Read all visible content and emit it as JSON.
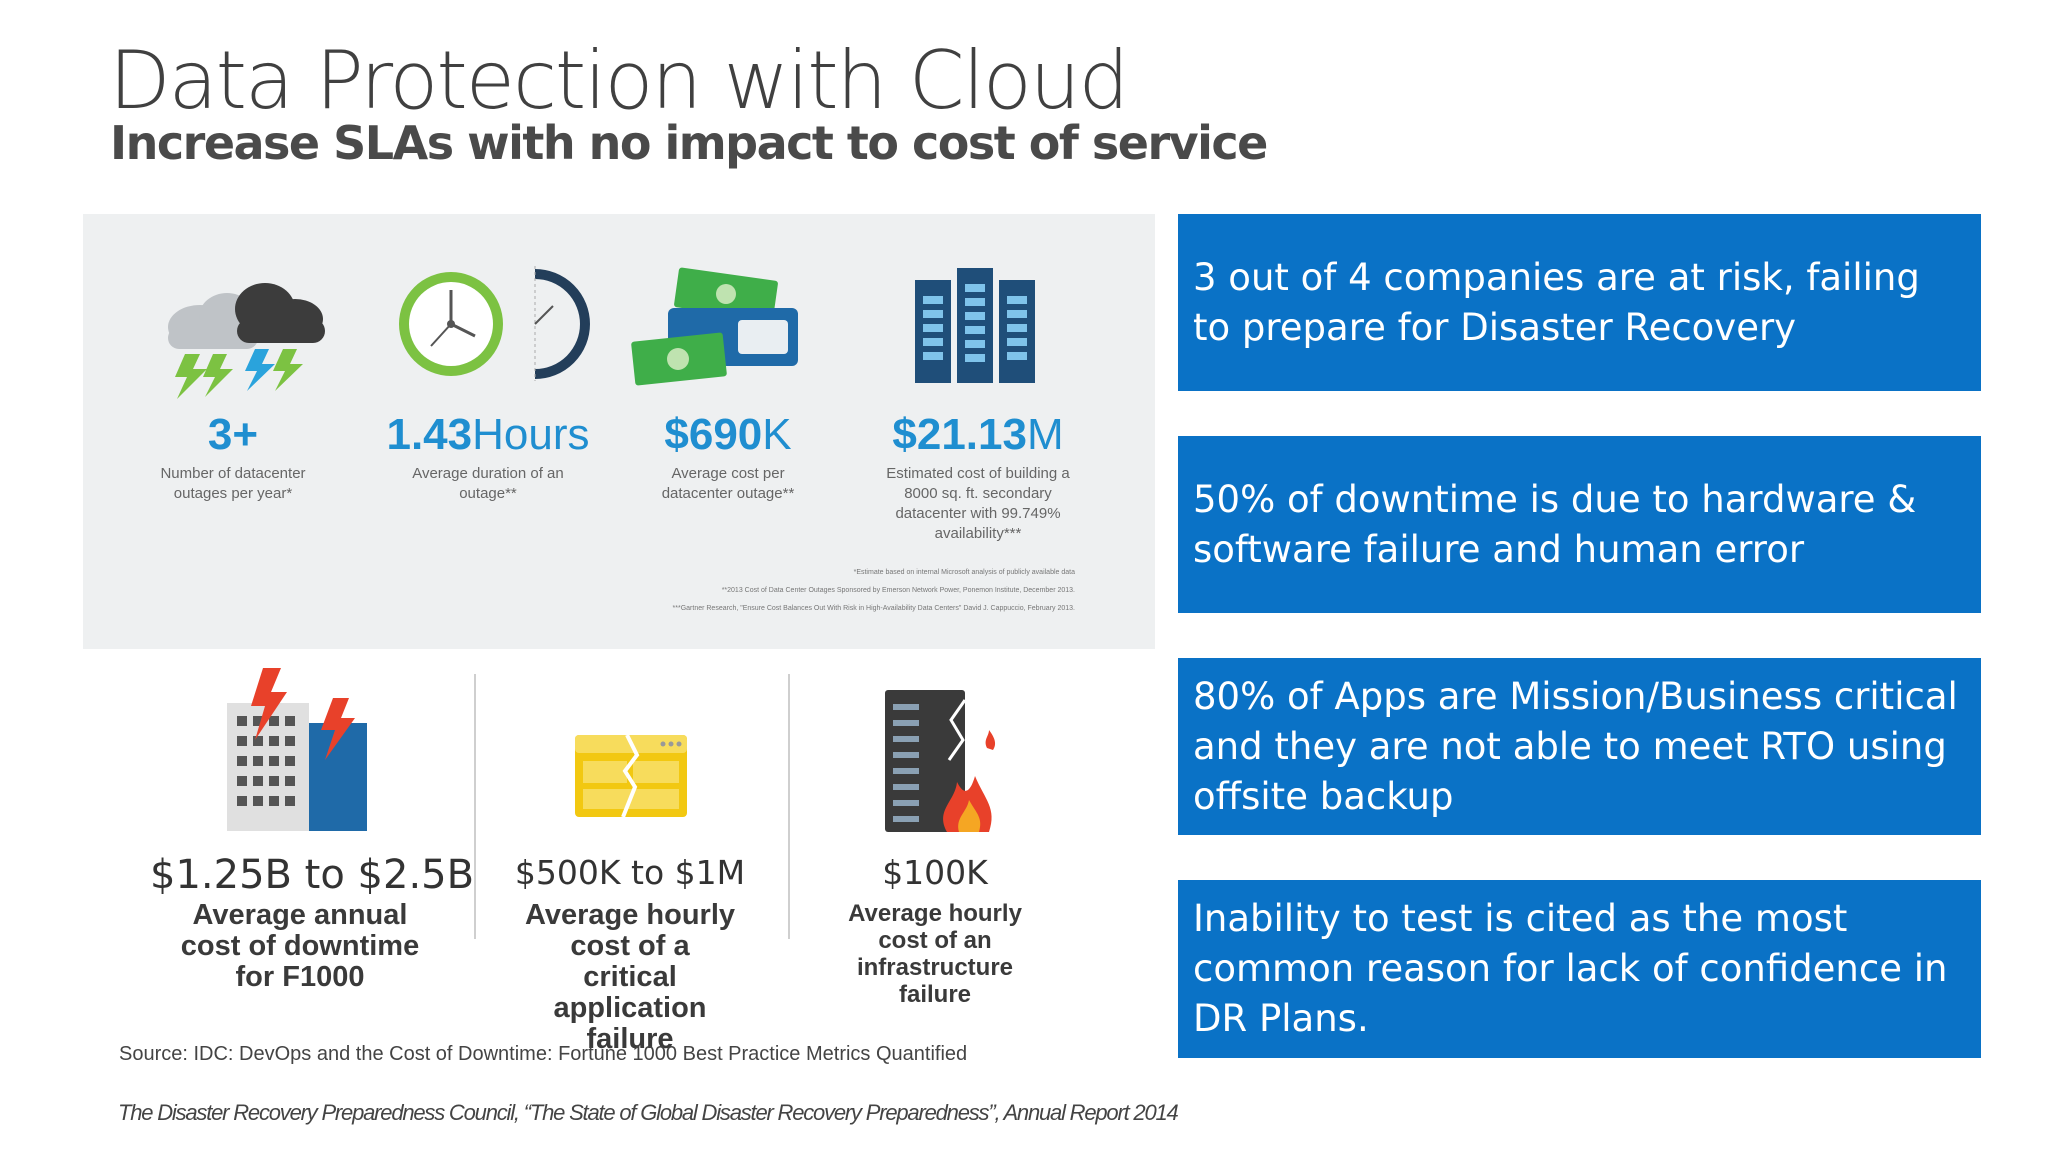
{
  "slide": {
    "title": "Data Protection with Cloud",
    "subtitle": "Increase SLAs with no impact to cost of service"
  },
  "infographic": {
    "stats": [
      {
        "icon": "storm-clouds-icon",
        "value": "3+",
        "unit": "",
        "label": "Number of datacenter outages per year*"
      },
      {
        "icon": "clock-icon",
        "value": "1.43",
        "unit": "Hours",
        "label": "Average duration of an outage**"
      },
      {
        "icon": "money-wallet-icon",
        "value": "$690",
        "unit": "K",
        "label": "Average cost per datacenter outage**"
      },
      {
        "icon": "datacenter-building-icon",
        "value": "$21.13",
        "unit": "M",
        "label": "Estimated cost of building a 8000 sq. ft. secondary datacenter with 99.749% availability***"
      }
    ],
    "footnotes": [
      "*Estimate based on internal Microsoft analysis of publicly available data",
      "**2013 Cost of Data Center Outages Sponsored by Emerson Network Power, Ponemon Institute, December 2013.",
      "***Gartner Research, \"Ensure Cost Balances Out With Risk in High-Availability Data Centers\" David J. Cappuccio, February 2013."
    ]
  },
  "downtime": [
    {
      "icon": "buildings-lightning-icon",
      "value": "$1.25B to $2.5B",
      "label": "Average annual cost of downtime for F1000"
    },
    {
      "icon": "broken-application-icon",
      "value": "$500K to $1M",
      "label": "Average hourly cost of a critical application failure"
    },
    {
      "icon": "server-fire-icon",
      "value": "$100K",
      "label": "Average hourly cost of an infrastructure failure"
    }
  ],
  "source": "Source: IDC: DevOps and the Cost of Downtime: Fortune 1000 Best Practice Metrics Quantified",
  "report_citation": "The Disaster Recovery Preparedness Council, “The State of Global Disaster Recovery Preparedness”, Annual Report 2014",
  "facts": [
    "3 out of 4 companies are at risk, failing to prepare for Disaster Recovery",
    "50% of downtime is due to hardware & software failure and human error",
    "80% of Apps are Mission/Business critical and they are not able to meet RTO using offsite backup",
    "Inability to test is cited as the most common reason for lack of confidence in DR Plans."
  ],
  "colors": {
    "accent_blue": "#0a72c6",
    "stat_blue": "#1f8ed0",
    "lime_green": "#7cc242",
    "money_green": "#3fae49",
    "alert_red": "#e8412a"
  }
}
